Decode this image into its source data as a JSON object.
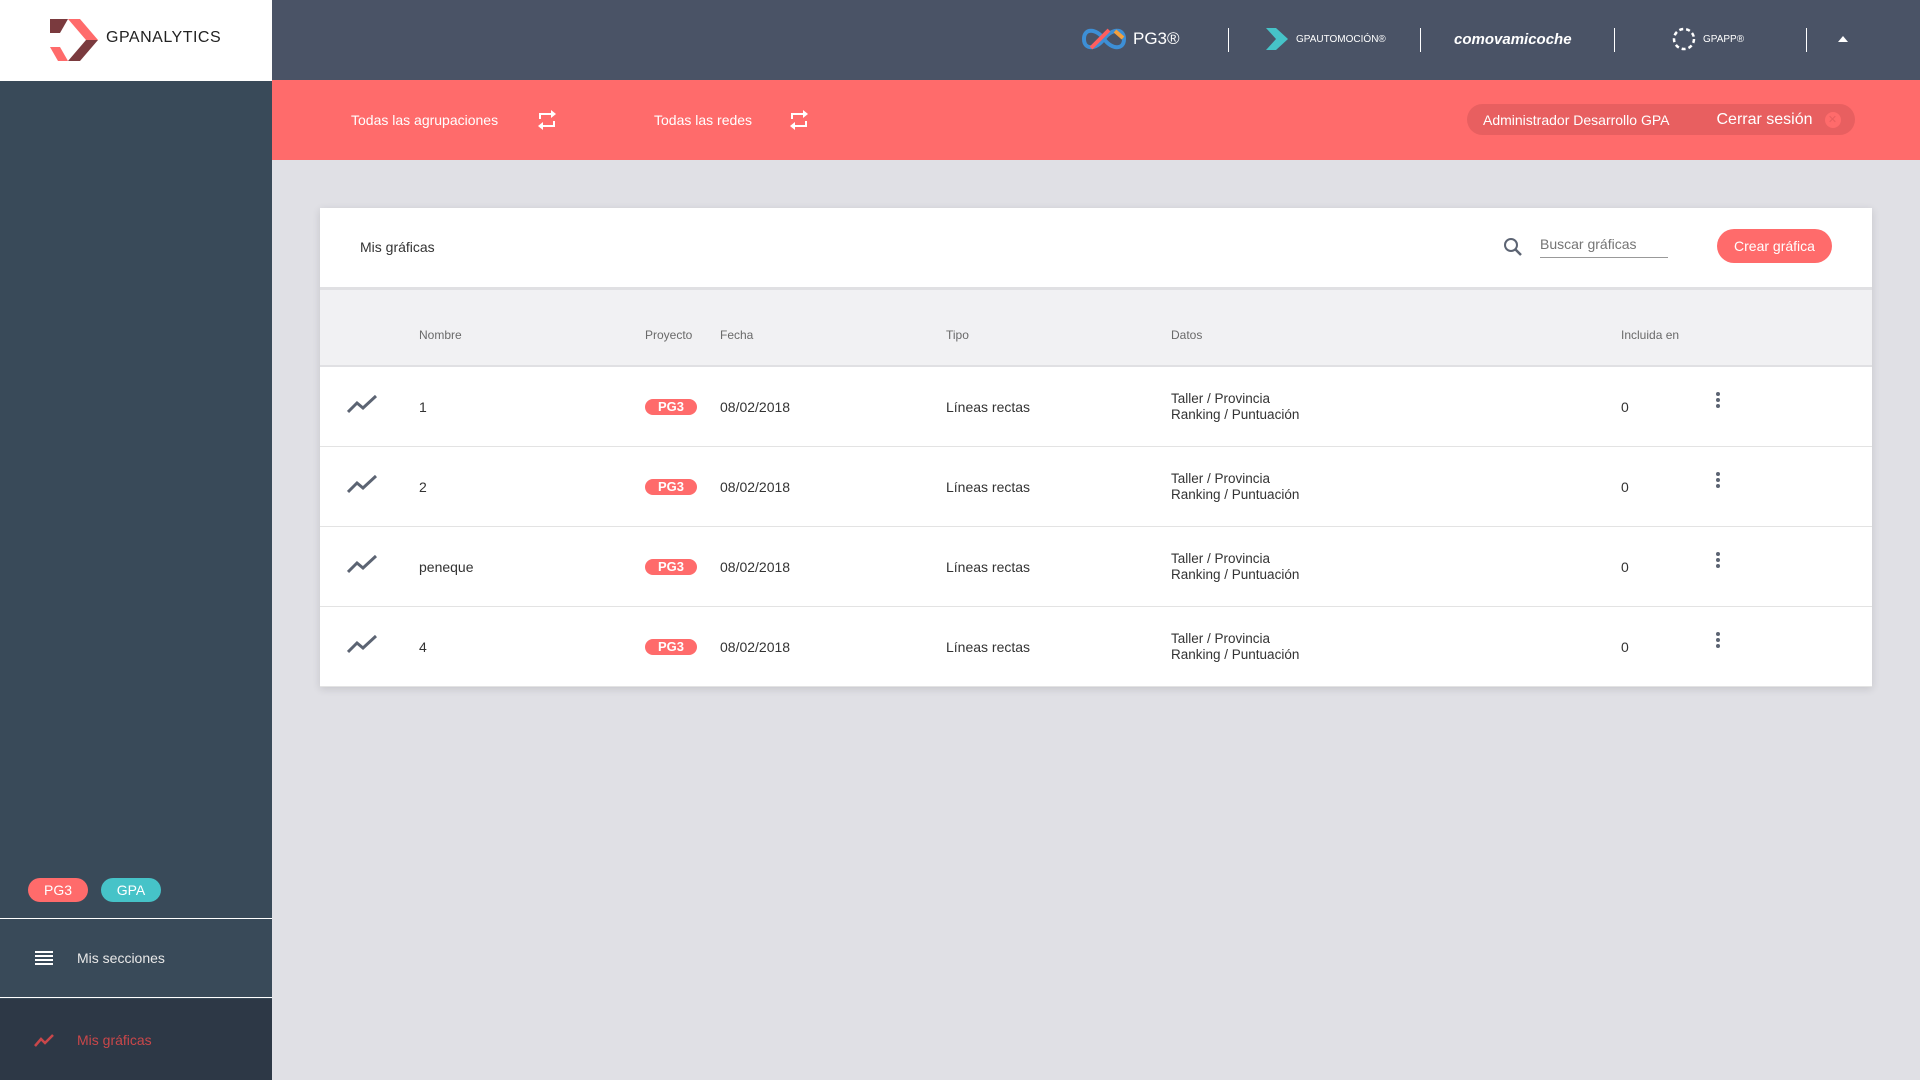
{
  "sidebar": {
    "logo": "GPANALYTICS",
    "badges": [
      {
        "label": "PG3",
        "color": "#ff6b6b"
      },
      {
        "label": "GPA",
        "color": "#46c3c8"
      }
    ],
    "items": [
      {
        "label": "Mis secciones",
        "icon": "menu-icon",
        "active": false
      },
      {
        "label": "Mis gráficas",
        "icon": "trending-icon",
        "active": true
      }
    ]
  },
  "topbar": {
    "brands": [
      "PG3®",
      "GPAUTOMOCIÓN®",
      "comovamicoche",
      "GPAPP®"
    ]
  },
  "filterbar": {
    "groupings": "Todas las agrupaciones",
    "networks": "Todas las redes",
    "user": "Administrador Desarrollo GPA",
    "logout": "Cerrar sesión"
  },
  "card": {
    "title": "Mis gráficas",
    "search_placeholder": "Buscar gráficas",
    "create": "Crear gráfica",
    "columns": [
      "Nombre",
      "Proyecto",
      "Fecha",
      "Tipo",
      "Datos",
      "Incluida en"
    ],
    "rows": [
      {
        "name": "1",
        "project": "PG3",
        "date": "08/02/2018",
        "type": "Líneas rectas",
        "data1": "Taller / Provincia",
        "data2": "Ranking / Puntuación",
        "included": "0"
      },
      {
        "name": "2",
        "project": "PG3",
        "date": "08/02/2018",
        "type": "Líneas rectas",
        "data1": "Taller / Provincia",
        "data2": "Ranking / Puntuación",
        "included": "0"
      },
      {
        "name": "peneque",
        "project": "PG3",
        "date": "08/02/2018",
        "type": "Líneas rectas",
        "data1": "Taller / Provincia",
        "data2": "Ranking / Puntuación",
        "included": "0"
      },
      {
        "name": "4",
        "project": "PG3",
        "date": "08/02/2018",
        "type": "Líneas rectas",
        "data1": "Taller / Provincia",
        "data2": "Ranking / Puntuación",
        "included": "0"
      }
    ]
  },
  "colors": {
    "accent": "#ff6b6b",
    "sidebar": "#394a59",
    "topbar": "#4a5366",
    "teal": "#46c3c8"
  }
}
